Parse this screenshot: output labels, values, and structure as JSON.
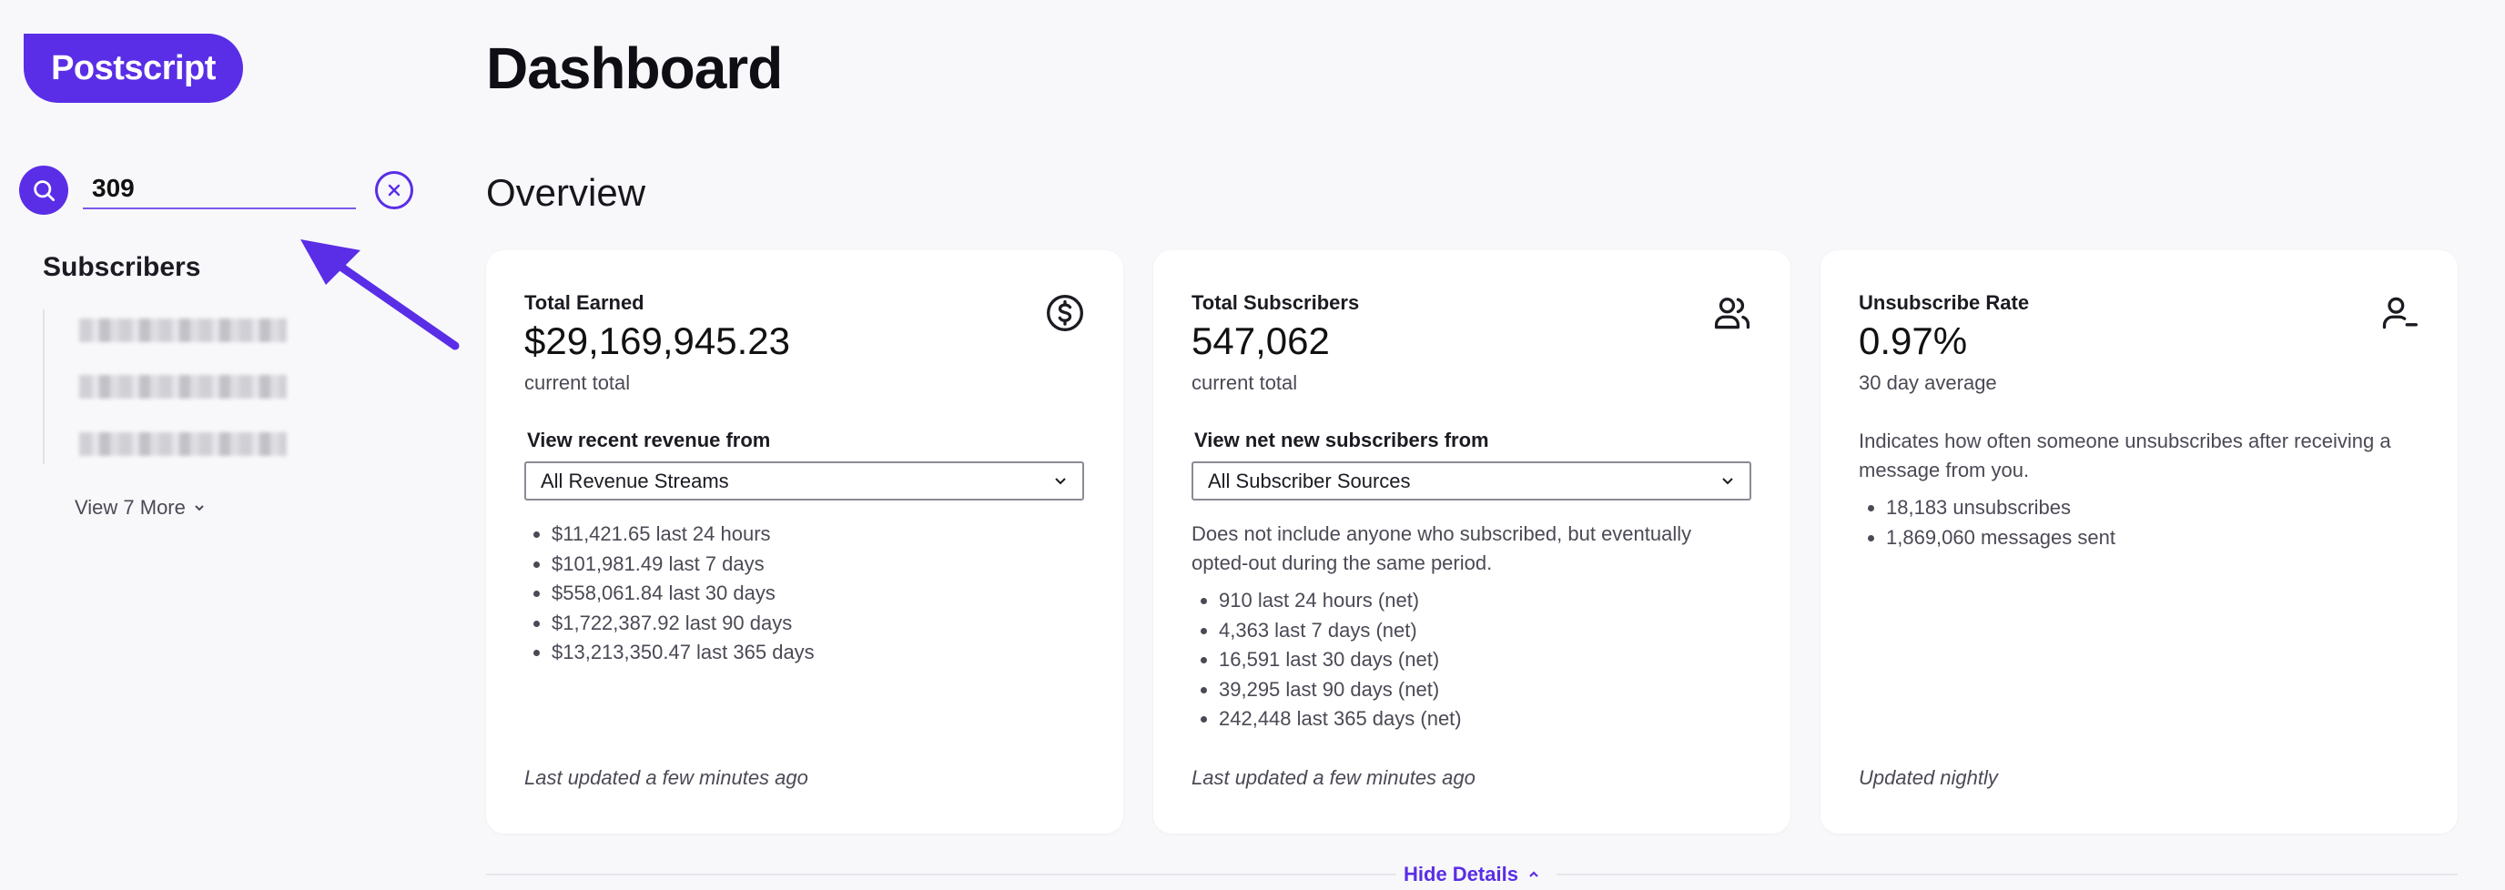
{
  "brand": {
    "logo_text": "Postscript",
    "accent": "#5a2ee6"
  },
  "sidebar": {
    "search": {
      "value": "309"
    },
    "section_title": "Subscribers",
    "view_more": "View 7 More"
  },
  "main": {
    "title": "Dashboard",
    "overview_title": "Overview",
    "hide_details": "Hide Details",
    "cards": [
      {
        "label": "Total Earned",
        "value": "$29,169,945.23",
        "sub": "current total",
        "icon": "dollar-circle-icon",
        "select_label": "View recent revenue from",
        "select_value": "All Revenue Streams",
        "items": [
          "$11,421.65 last 24 hours",
          "$101,981.49 last 7 days",
          "$558,061.84 last 30 days",
          "$1,722,387.92 last 90 days",
          "$13,213,350.47 last 365 days"
        ],
        "footer": "Last updated a few minutes ago"
      },
      {
        "label": "Total Subscribers",
        "value": "547,062",
        "sub": "current total",
        "icon": "users-icon",
        "select_label": "View net new subscribers from",
        "select_value": "All Subscriber Sources",
        "description": "Does not include anyone who subscribed, but eventually opted-out during the same period.",
        "items": [
          "910 last 24 hours (net)",
          "4,363 last 7 days (net)",
          "16,591 last 30 days (net)",
          "39,295 last 90 days (net)",
          "242,448 last 365 days (net)"
        ],
        "footer": "Last updated a few minutes ago"
      },
      {
        "label": "Unsubscribe Rate",
        "value": "0.97%",
        "sub": "30 day average",
        "icon": "user-minus-icon",
        "description": "Indicates how often someone unsubscribes after receiving a message from you.",
        "items": [
          "18,183 unsubscribes",
          "1,869,060 messages sent"
        ],
        "footer": "Updated nightly"
      }
    ]
  }
}
